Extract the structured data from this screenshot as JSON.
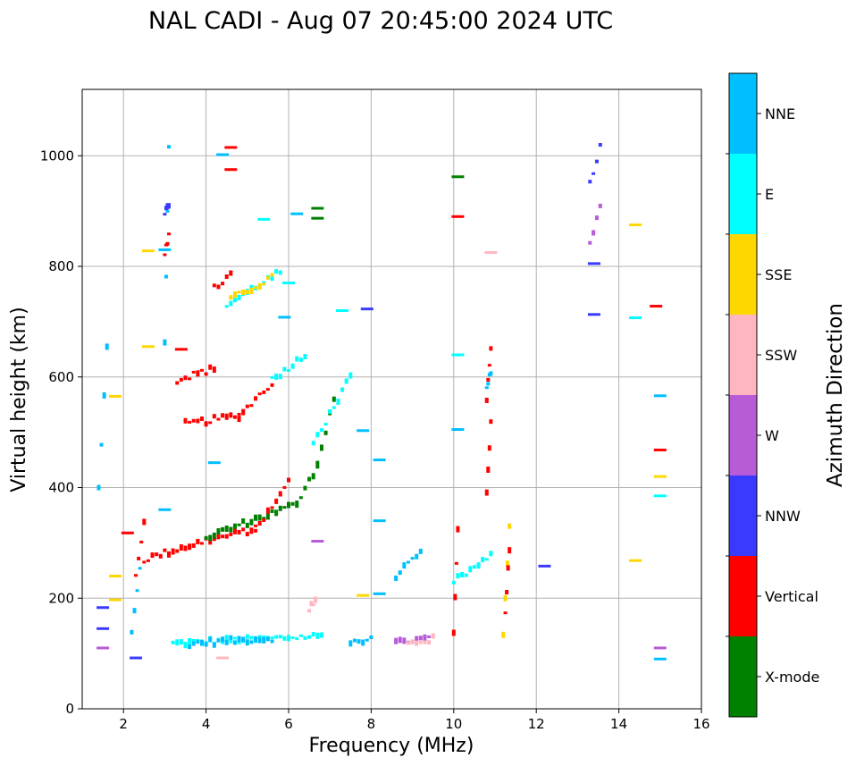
{
  "chart_data": {
    "type": "scatter",
    "title": "NAL CADI - Aug 07 20:45:00 2024 UTC",
    "xlabel": "Frequency (MHz)",
    "ylabel": "Virtual height (km)",
    "xlim": [
      1,
      16
    ],
    "ylim": [
      0,
      1120
    ],
    "xticks": [
      2,
      4,
      6,
      8,
      10,
      12,
      14,
      16
    ],
    "yticks": [
      0,
      200,
      400,
      600,
      800,
      1000
    ],
    "grid": true,
    "colorbar": {
      "title": "Azimuth Direction",
      "categories": [
        {
          "name": "X-mode",
          "color": "#008000"
        },
        {
          "name": "Vertical",
          "color": "#ff0000"
        },
        {
          "name": "NNW",
          "color": "#3a3aff"
        },
        {
          "name": "W",
          "color": "#b85bd6"
        },
        {
          "name": "SSW",
          "color": "#ffb6c1"
        },
        {
          "name": "SSE",
          "color": "#ffd700"
        },
        {
          "name": "E",
          "color": "#00ffff"
        },
        {
          "name": "NNE",
          "color": "#00bfff"
        }
      ]
    },
    "segments": [
      {
        "dir": "E",
        "x0": 3.2,
        "x1": 6.8,
        "y0": 118,
        "y1": 132
      },
      {
        "dir": "NNE",
        "x0": 3.6,
        "x1": 5.6,
        "y0": 118,
        "y1": 128
      },
      {
        "dir": "W",
        "x0": 8.6,
        "x1": 9.4,
        "y0": 120,
        "y1": 128
      },
      {
        "dir": "SSW",
        "x0": 8.9,
        "x1": 9.5,
        "y0": 118,
        "y1": 126
      },
      {
        "dir": "NNE",
        "x0": 7.5,
        "x1": 8.0,
        "y0": 118,
        "y1": 128
      },
      {
        "dir": "Vertical",
        "x0": 2.5,
        "x1": 3.8,
        "y0": 270,
        "y1": 300
      },
      {
        "dir": "Vertical",
        "x0": 3.8,
        "x1": 5.2,
        "y0": 300,
        "y1": 325
      },
      {
        "dir": "X-mode",
        "x0": 4.0,
        "x1": 6.2,
        "y0": 310,
        "y1": 370
      },
      {
        "dir": "Vertical",
        "x0": 5.2,
        "x1": 6.0,
        "y0": 325,
        "y1": 410
      },
      {
        "dir": "X-mode",
        "x0": 6.2,
        "x1": 6.7,
        "y0": 370,
        "y1": 440
      },
      {
        "dir": "X-mode",
        "x0": 6.7,
        "x1": 7.1,
        "y0": 440,
        "y1": 560
      },
      {
        "dir": "E",
        "x0": 6.6,
        "x1": 7.5,
        "y0": 480,
        "y1": 600
      },
      {
        "dir": "Vertical",
        "x0": 3.5,
        "x1": 4.8,
        "y0": 515,
        "y1": 530
      },
      {
        "dir": "Vertical",
        "x0": 4.8,
        "x1": 5.6,
        "y0": 530,
        "y1": 590
      },
      {
        "dir": "E",
        "x0": 5.6,
        "x1": 6.4,
        "y0": 595,
        "y1": 640
      },
      {
        "dir": "Vertical",
        "x0": 3.3,
        "x1": 4.2,
        "y0": 595,
        "y1": 615
      },
      {
        "dir": "E",
        "x0": 4.5,
        "x1": 5.8,
        "y0": 730,
        "y1": 790
      },
      {
        "dir": "SSE",
        "x0": 4.6,
        "x1": 5.6,
        "y0": 740,
        "y1": 780
      },
      {
        "dir": "Vertical",
        "x0": 4.2,
        "x1": 4.6,
        "y0": 760,
        "y1": 785
      },
      {
        "dir": "NNE",
        "x0": 3.0,
        "x1": 3.1,
        "y0": 660,
        "y1": 1015
      },
      {
        "dir": "NNW",
        "x0": 3.0,
        "x1": 3.1,
        "y0": 895,
        "y1": 910
      },
      {
        "dir": "Vertical",
        "x0": 3.0,
        "x1": 3.1,
        "y0": 820,
        "y1": 860
      },
      {
        "dir": "NNE",
        "x0": 2.2,
        "x1": 2.4,
        "y0": 140,
        "y1": 250
      },
      {
        "dir": "Vertical",
        "x0": 2.3,
        "x1": 2.5,
        "y0": 240,
        "y1": 340
      },
      {
        "dir": "Vertical",
        "x0": 10.8,
        "x1": 10.9,
        "y0": 390,
        "y1": 520
      },
      {
        "dir": "Vertical",
        "x0": 10.8,
        "x1": 10.9,
        "y0": 560,
        "y1": 650
      },
      {
        "dir": "NNE",
        "x0": 10.8,
        "x1": 10.9,
        "y0": 580,
        "y1": 610
      },
      {
        "dir": "SSE",
        "x0": 11.2,
        "x1": 11.35,
        "y0": 130,
        "y1": 335
      },
      {
        "dir": "Vertical",
        "x0": 11.25,
        "x1": 11.35,
        "y0": 170,
        "y1": 290
      },
      {
        "dir": "Vertical",
        "x0": 10.0,
        "x1": 10.1,
        "y0": 140,
        "y1": 320
      },
      {
        "dir": "NNW",
        "x0": 13.3,
        "x1": 13.55,
        "y0": 950,
        "y1": 1015
      },
      {
        "dir": "W",
        "x0": 13.3,
        "x1": 13.55,
        "y0": 840,
        "y1": 910
      },
      {
        "dir": "SSW",
        "x0": 6.5,
        "x1": 6.65,
        "y0": 180,
        "y1": 195
      },
      {
        "dir": "NNE",
        "x0": 1.4,
        "x1": 1.6,
        "y0": 400,
        "y1": 650
      },
      {
        "dir": "NNE",
        "x0": 8.6,
        "x1": 9.2,
        "y0": 240,
        "y1": 280
      },
      {
        "dir": "E",
        "x0": 10.0,
        "x1": 10.9,
        "y0": 230,
        "y1": 275
      }
    ],
    "points": [
      {
        "dir": "SSE",
        "x": 14.4,
        "y": 875
      },
      {
        "dir": "SSE",
        "x": 14.4,
        "y": 268
      },
      {
        "dir": "E",
        "x": 14.4,
        "y": 707
      },
      {
        "dir": "Vertical",
        "x": 14.9,
        "y": 728
      },
      {
        "dir": "Vertical",
        "x": 15.0,
        "y": 468
      },
      {
        "dir": "SSE",
        "x": 15.0,
        "y": 420
      },
      {
        "dir": "NNE",
        "x": 15.0,
        "y": 566
      },
      {
        "dir": "E",
        "x": 15.0,
        "y": 385
      },
      {
        "dir": "W",
        "x": 15.0,
        "y": 110
      },
      {
        "dir": "NNE",
        "x": 15.0,
        "y": 90
      },
      {
        "dir": "NNW",
        "x": 13.4,
        "y": 805
      },
      {
        "dir": "NNW",
        "x": 13.4,
        "y": 713
      },
      {
        "dir": "NNW",
        "x": 12.2,
        "y": 258
      },
      {
        "dir": "SSW",
        "x": 10.9,
        "y": 825
      },
      {
        "dir": "X-mode",
        "x": 10.1,
        "y": 962
      },
      {
        "dir": "Vertical",
        "x": 10.1,
        "y": 890
      },
      {
        "dir": "E",
        "x": 10.1,
        "y": 640
      },
      {
        "dir": "NNE",
        "x": 10.1,
        "y": 505
      },
      {
        "dir": "NNE",
        "x": 8.2,
        "y": 450
      },
      {
        "dir": "NNE",
        "x": 8.2,
        "y": 340
      },
      {
        "dir": "NNE",
        "x": 8.2,
        "y": 208
      },
      {
        "dir": "NNW",
        "x": 7.9,
        "y": 723
      },
      {
        "dir": "NNE",
        "x": 7.8,
        "y": 503
      },
      {
        "dir": "SSE",
        "x": 7.8,
        "y": 205
      },
      {
        "dir": "X-mode",
        "x": 6.7,
        "y": 905
      },
      {
        "dir": "X-mode",
        "x": 6.7,
        "y": 887
      },
      {
        "dir": "NNE",
        "x": 6.2,
        "y": 895
      },
      {
        "dir": "Vertical",
        "x": 4.6,
        "y": 1015
      },
      {
        "dir": "Vertical",
        "x": 4.6,
        "y": 975
      },
      {
        "dir": "NNE",
        "x": 4.4,
        "y": 1002
      },
      {
        "dir": "E",
        "x": 5.4,
        "y": 885
      },
      {
        "dir": "Vertical",
        "x": 2.1,
        "y": 318
      },
      {
        "dir": "NNE",
        "x": 3.0,
        "y": 360
      },
      {
        "dir": "SSW",
        "x": 4.4,
        "y": 92
      },
      {
        "dir": "NNW",
        "x": 2.3,
        "y": 92
      },
      {
        "dir": "NNW",
        "x": 1.5,
        "y": 145
      },
      {
        "dir": "NNW",
        "x": 1.5,
        "y": 183
      },
      {
        "dir": "W",
        "x": 1.5,
        "y": 110
      },
      {
        "dir": "SSE",
        "x": 1.8,
        "y": 197
      },
      {
        "dir": "SSE",
        "x": 1.8,
        "y": 240
      },
      {
        "dir": "SSE",
        "x": 1.8,
        "y": 565
      },
      {
        "dir": "SSE",
        "x": 2.6,
        "y": 655
      },
      {
        "dir": "SSE",
        "x": 2.6,
        "y": 828
      },
      {
        "dir": "NNE",
        "x": 3.0,
        "y": 830
      },
      {
        "dir": "E",
        "x": 6.0,
        "y": 770
      },
      {
        "dir": "NNE",
        "x": 5.9,
        "y": 708
      },
      {
        "dir": "W",
        "x": 6.7,
        "y": 303
      },
      {
        "dir": "E",
        "x": 7.3,
        "y": 720
      },
      {
        "dir": "Vertical",
        "x": 3.4,
        "y": 650
      },
      {
        "dir": "NNE",
        "x": 4.2,
        "y": 445
      }
    ]
  }
}
